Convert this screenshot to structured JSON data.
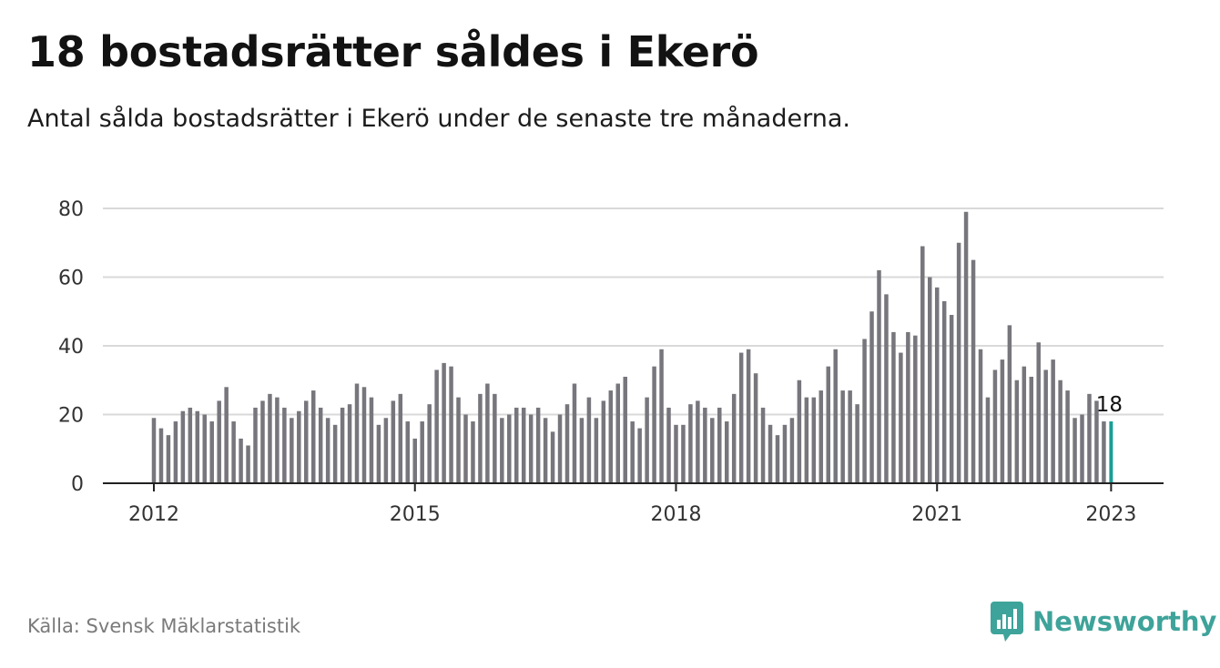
{
  "header": {
    "title": "18 bostadsrätter såldes i Ekerö",
    "subtitle": "Antal sålda bostadsrätter i Ekerö under de senaste tre månaderna."
  },
  "footer": {
    "source": "Källa: Svensk Mäklarstatistik",
    "brand": "Newsworthy",
    "brand_icon": "newsworthy-logo-icon"
  },
  "colors": {
    "bar": "#77767c",
    "highlight": "#1a9e95",
    "grid": "#d9d9d9",
    "axis": "#222222",
    "brand": "#3ea39a"
  },
  "chart_data": {
    "type": "bar",
    "title": "18 bostadsrätter såldes i Ekerö",
    "xlabel": "",
    "ylabel": "",
    "ylim": [
      0,
      80
    ],
    "yticks": [
      0,
      20,
      40,
      60,
      80
    ],
    "x_start": "2012-01",
    "x_ticks": [
      "2012",
      "2015",
      "2018",
      "2021",
      "2023"
    ],
    "grid": true,
    "highlight_last": true,
    "last_label": "18",
    "values": [
      19,
      16,
      14,
      18,
      21,
      22,
      21,
      20,
      18,
      24,
      28,
      18,
      13,
      11,
      22,
      24,
      26,
      25,
      22,
      19,
      21,
      24,
      27,
      22,
      19,
      17,
      22,
      23,
      29,
      28,
      25,
      17,
      19,
      24,
      26,
      18,
      13,
      18,
      23,
      33,
      35,
      34,
      25,
      20,
      18,
      26,
      29,
      26,
      19,
      20,
      22,
      22,
      20,
      22,
      19,
      15,
      20,
      23,
      29,
      19,
      25,
      19,
      24,
      27,
      29,
      31,
      18,
      16,
      25,
      34,
      39,
      22,
      17,
      17,
      23,
      24,
      22,
      19,
      22,
      18,
      26,
      38,
      39,
      32,
      22,
      17,
      14,
      17,
      19,
      30,
      25,
      25,
      27,
      34,
      39,
      27,
      27,
      23,
      42,
      50,
      62,
      55,
      44,
      38,
      44,
      43,
      69,
      60,
      57,
      53,
      49,
      70,
      79,
      65,
      39,
      25,
      33,
      36,
      46,
      30,
      34,
      31,
      41,
      33,
      36,
      30,
      27,
      19,
      20,
      26,
      24,
      18,
      18
    ]
  }
}
